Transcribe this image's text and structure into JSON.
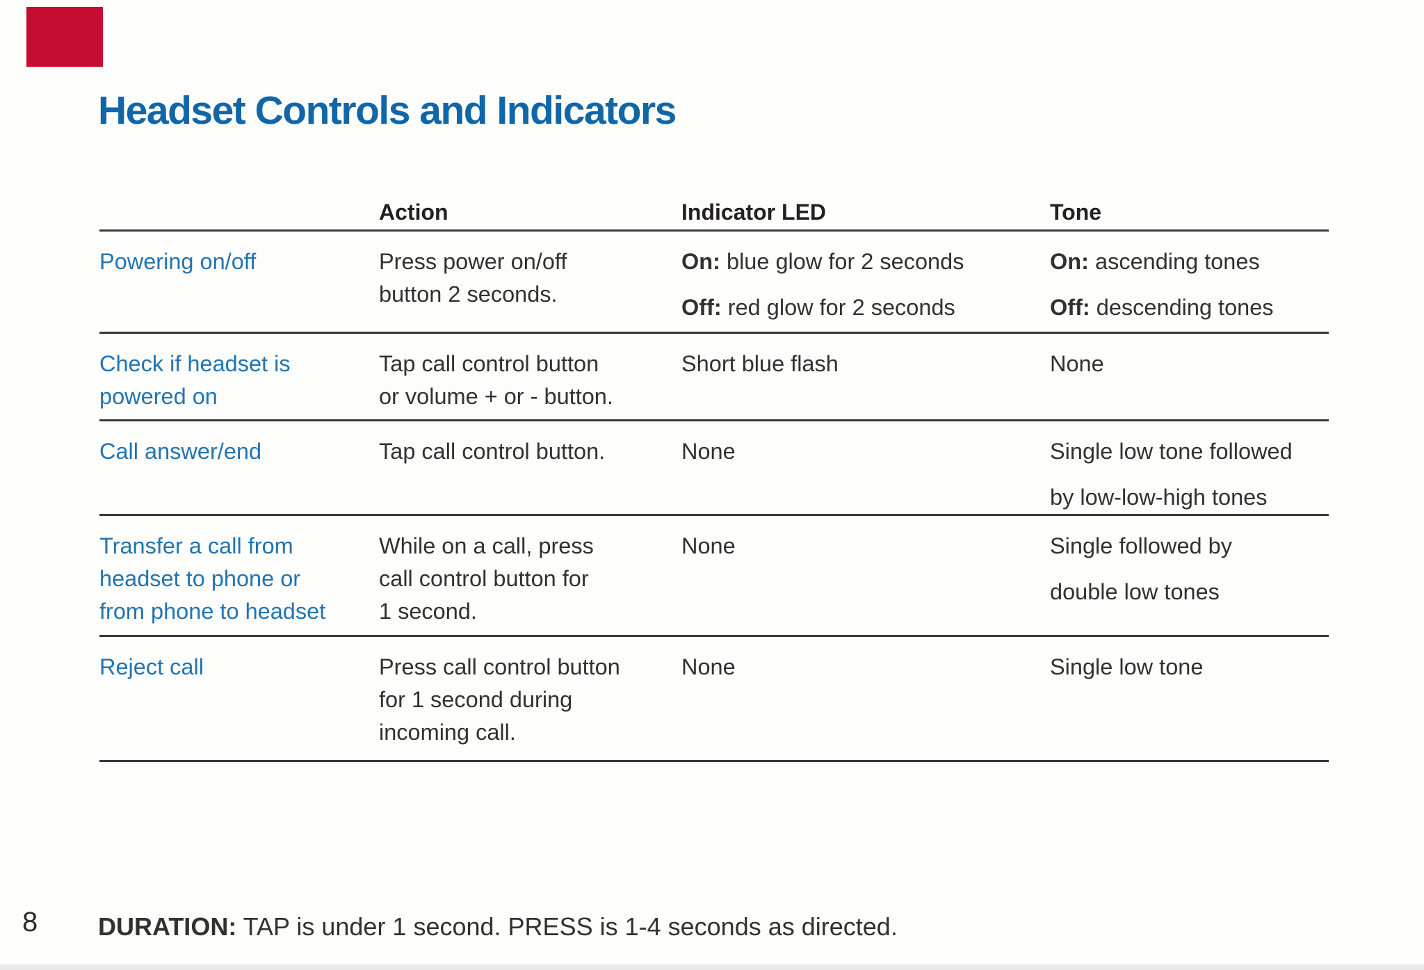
{
  "title": "Headset Controls and Indicators",
  "page_number": "8",
  "footnote": {
    "label": "DURATION:",
    "text": " TAP is under 1 second. PRESS is 1-4 seconds as directed."
  },
  "colors": {
    "accent_red": "#c60c30",
    "title_blue": "#1166a8",
    "row_label_blue": "#2274b1",
    "rule": "#3b3839",
    "text": "#343031"
  },
  "table": {
    "headers": [
      "",
      "Action",
      "Indicator LED",
      "Tone"
    ],
    "rows": [
      {
        "min_height": 147,
        "label_lines": [
          "Powering on/off"
        ],
        "action_lines": [
          "Press power on/off",
          "button 2 seconds."
        ],
        "led": [
          {
            "b": "On:",
            "t": " blue glow for 2 seconds"
          },
          {
            "b": "Off:",
            "t": " red glow for 2 seconds"
          }
        ],
        "tone": [
          {
            "b": "On:",
            "t": " ascending tones"
          },
          {
            "b": "Off:",
            "t": " descending tones"
          }
        ]
      },
      {
        "min_height": 126,
        "label_lines": [
          "Check if headset is",
          "powered on"
        ],
        "action_lines": [
          "Tap call control button",
          "or volume + or - button."
        ],
        "led": [
          {
            "b": "",
            "t": "Short blue flash"
          }
        ],
        "tone": [
          {
            "b": "",
            "t": "None"
          }
        ]
      },
      {
        "min_height": 127,
        "label_lines": [
          "Call answer/end"
        ],
        "action_lines": [
          "Tap call control button."
        ],
        "led": [
          {
            "b": "",
            "t": "None"
          }
        ],
        "tone": [
          {
            "b": "",
            "t": "Single low tone followed"
          },
          {
            "b": "",
            "t": "by low-low-high tones"
          }
        ]
      },
      {
        "min_height": 174,
        "label_lines": [
          "Transfer a call from",
          "headset to phone or",
          "from phone to headset"
        ],
        "action_lines": [
          "While on a call, press",
          "call control button for",
          "1 second."
        ],
        "led": [
          {
            "b": "",
            "t": "None"
          }
        ],
        "tone": [
          {
            "b": "",
            "t": "Single followed by"
          },
          {
            "b": "",
            "t": "double low tones"
          }
        ]
      },
      {
        "min_height": 180,
        "label_lines": [
          "Reject call"
        ],
        "action_lines": [
          "Press call control button",
          "for 1 second during",
          "incoming call."
        ],
        "led": [
          {
            "b": "",
            "t": "None"
          }
        ],
        "tone": [
          {
            "b": "",
            "t": "Single low tone"
          }
        ]
      }
    ]
  }
}
